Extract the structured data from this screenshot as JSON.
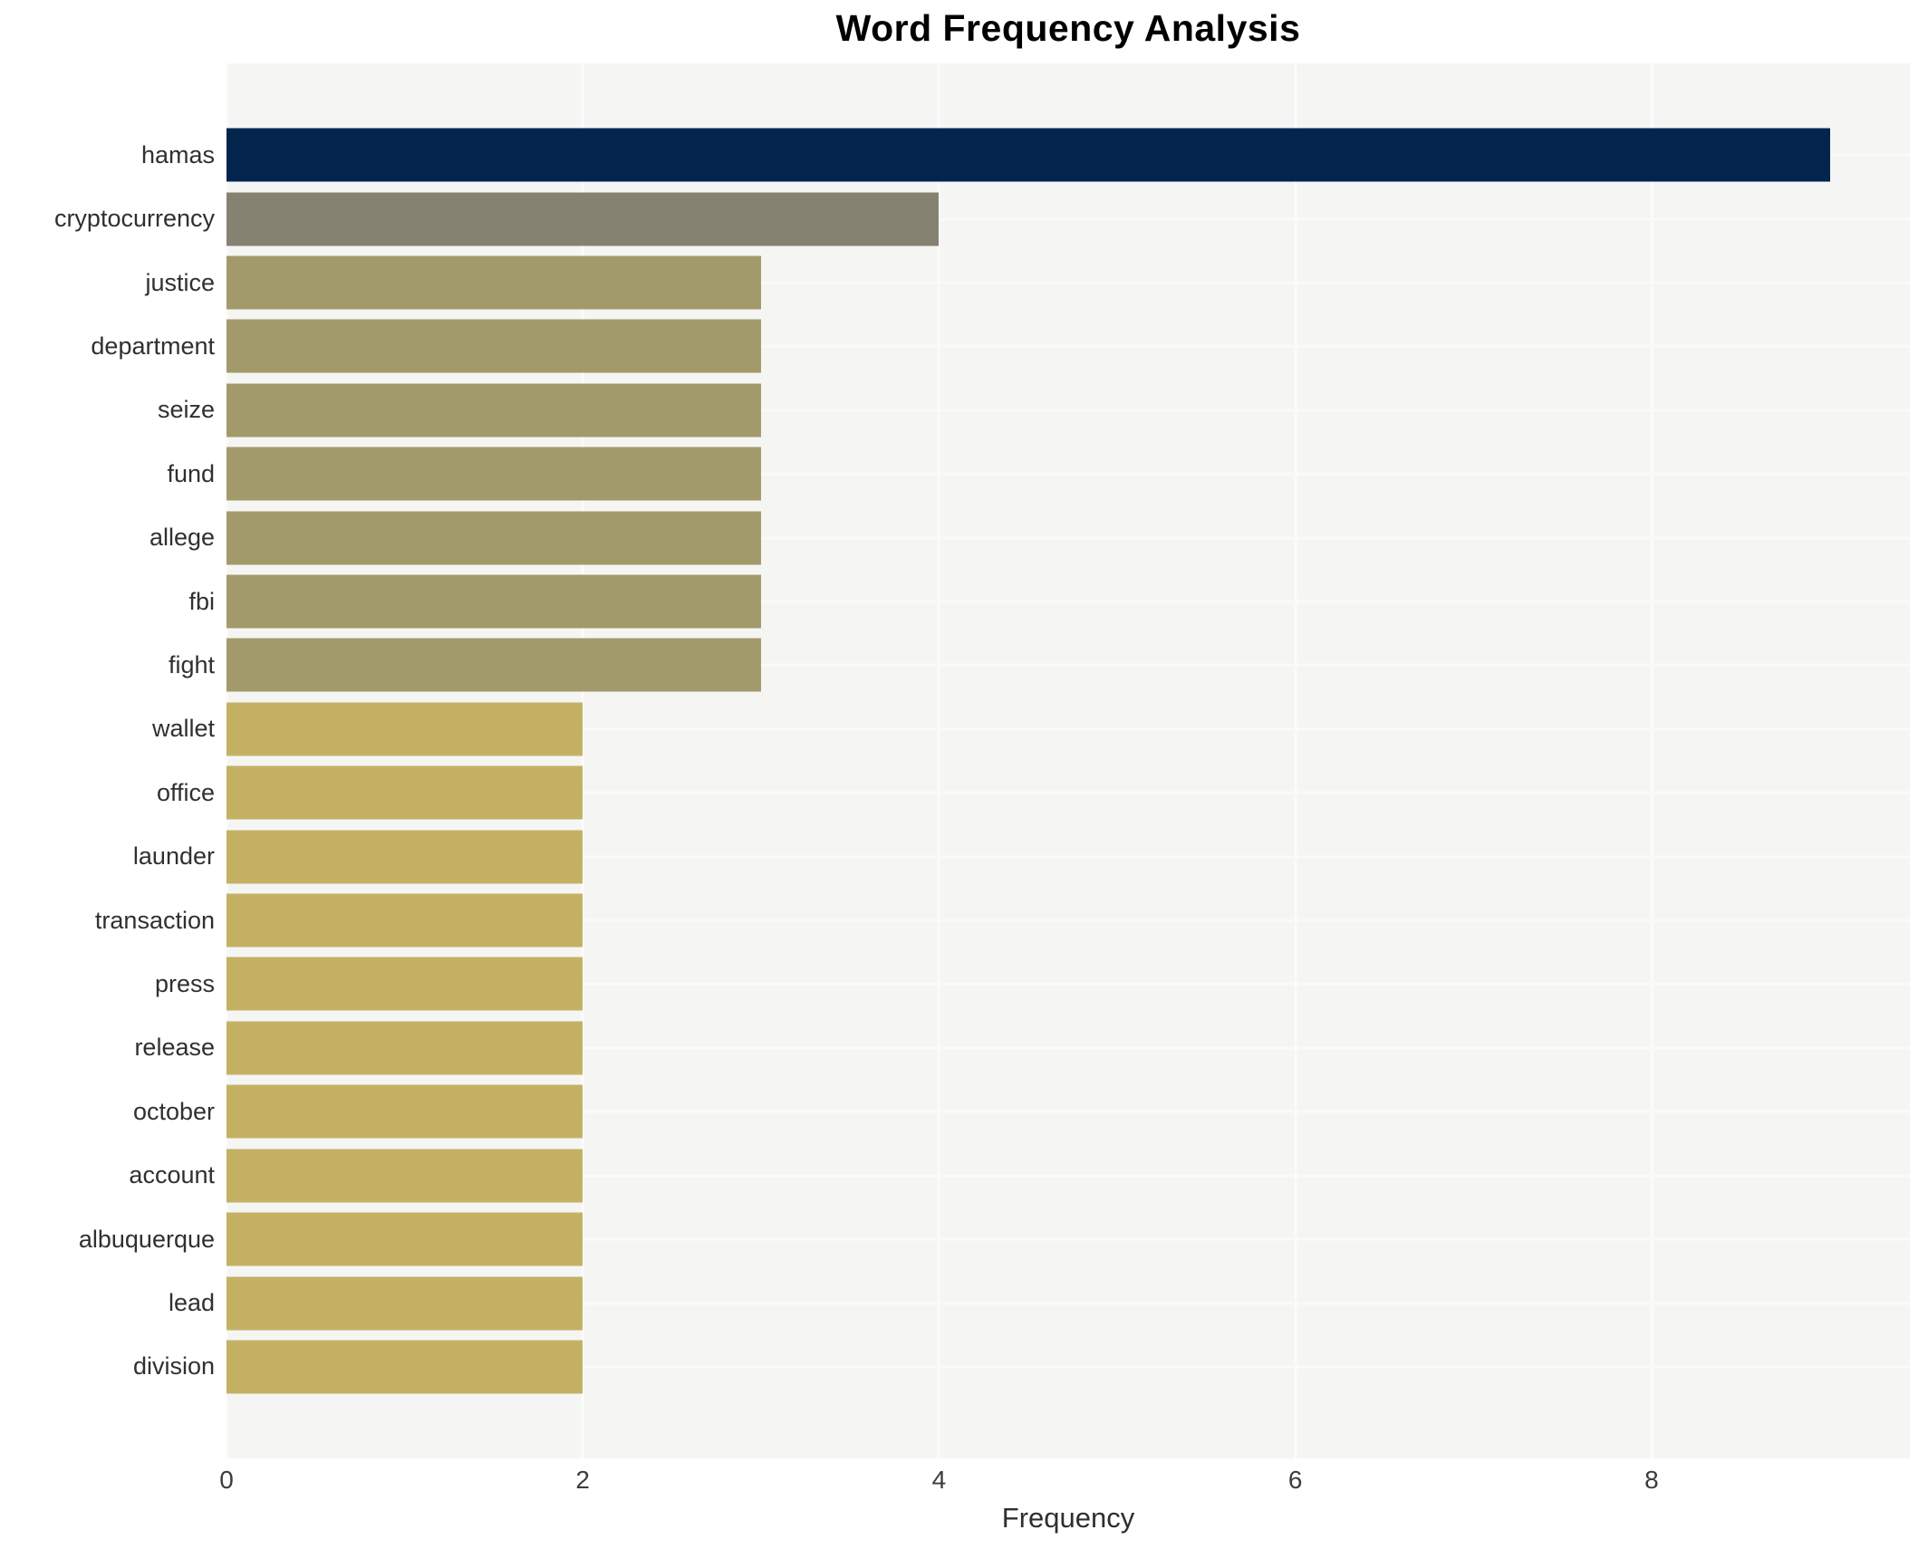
{
  "title": "Word Frequency Analysis",
  "xaxis": {
    "label": "Frequency"
  },
  "colors": {
    "page_background": "#ffffff",
    "plot_background": "#f5f5f3",
    "gridline": "#fcfcfc",
    "title_text": "#000000",
    "tick_text": "#3c3c3c",
    "label_text": "#303030",
    "bar_navy": "#02244d",
    "bar_gray": "#868271",
    "bar_olive": "#a39a6b",
    "bar_gold": "#c4b164"
  },
  "chart_data": {
    "type": "bar",
    "orientation": "horizontal",
    "title": "Word Frequency Analysis",
    "xlabel": "Frequency",
    "ylabel": "",
    "categories": [
      "hamas",
      "cryptocurrency",
      "justice",
      "department",
      "seize",
      "fund",
      "allege",
      "fbi",
      "fight",
      "wallet",
      "office",
      "launder",
      "transaction",
      "press",
      "release",
      "october",
      "account",
      "albuquerque",
      "lead",
      "division"
    ],
    "values": [
      9,
      4,
      3,
      3,
      3,
      3,
      3,
      3,
      3,
      2,
      2,
      2,
      2,
      2,
      2,
      2,
      2,
      2,
      2,
      2
    ],
    "bar_colors": [
      "#02244d",
      "#868271",
      "#a39a6b",
      "#a39a6b",
      "#a39a6b",
      "#a39a6b",
      "#a39a6b",
      "#a39a6b",
      "#a39a6b",
      "#c4b164",
      "#c4b164",
      "#c4b164",
      "#c4b164",
      "#c4b164",
      "#c4b164",
      "#c4b164",
      "#c4b164",
      "#c4b164",
      "#c4b164",
      "#c4b164"
    ],
    "xlim": [
      0,
      9.45
    ],
    "xticks": [
      0,
      2,
      4,
      6,
      8
    ],
    "grid": true,
    "legend": false
  }
}
